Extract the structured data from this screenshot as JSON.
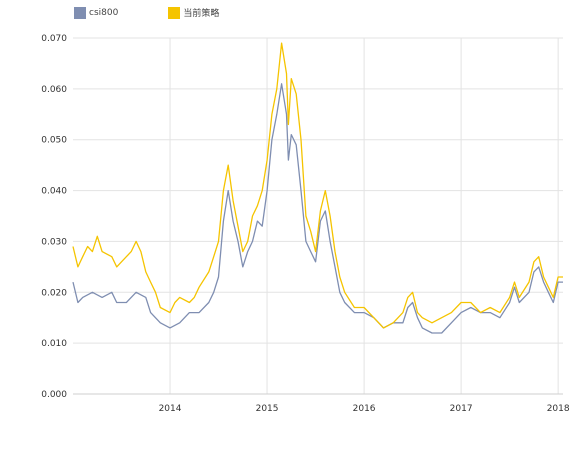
{
  "chart_data": {
    "type": "line",
    "title": "",
    "xlabel": "",
    "ylabel": "",
    "ylim": [
      0,
      0.07
    ],
    "y_ticks": [
      "0.000",
      "0.010",
      "0.020",
      "0.030",
      "0.040",
      "0.050",
      "0.060",
      "0.070"
    ],
    "x_ticks": [
      "2014",
      "2015",
      "2016",
      "2017",
      "2018"
    ],
    "x_range": [
      2013.0,
      2018.05
    ],
    "grid": true,
    "legend_position": "top-left",
    "series": [
      {
        "name": "csi800",
        "color": "#7f8eb1",
        "points": [
          [
            2013.0,
            0.022
          ],
          [
            2013.05,
            0.018
          ],
          [
            2013.1,
            0.019
          ],
          [
            2013.2,
            0.02
          ],
          [
            2013.3,
            0.019
          ],
          [
            2013.4,
            0.02
          ],
          [
            2013.45,
            0.018
          ],
          [
            2013.55,
            0.018
          ],
          [
            2013.65,
            0.02
          ],
          [
            2013.75,
            0.019
          ],
          [
            2013.8,
            0.016
          ],
          [
            2013.9,
            0.014
          ],
          [
            2014.0,
            0.013
          ],
          [
            2014.1,
            0.014
          ],
          [
            2014.2,
            0.016
          ],
          [
            2014.25,
            0.016
          ],
          [
            2014.3,
            0.016
          ],
          [
            2014.4,
            0.018
          ],
          [
            2014.45,
            0.02
          ],
          [
            2014.5,
            0.023
          ],
          [
            2014.55,
            0.034
          ],
          [
            2014.6,
            0.04
          ],
          [
            2014.65,
            0.034
          ],
          [
            2014.7,
            0.03
          ],
          [
            2014.75,
            0.025
          ],
          [
            2014.8,
            0.028
          ],
          [
            2014.85,
            0.03
          ],
          [
            2014.9,
            0.034
          ],
          [
            2014.95,
            0.033
          ],
          [
            2015.0,
            0.04
          ],
          [
            2015.05,
            0.05
          ],
          [
            2015.1,
            0.055
          ],
          [
            2015.15,
            0.061
          ],
          [
            2015.2,
            0.055
          ],
          [
            2015.22,
            0.046
          ],
          [
            2015.25,
            0.051
          ],
          [
            2015.3,
            0.049
          ],
          [
            2015.35,
            0.04
          ],
          [
            2015.4,
            0.03
          ],
          [
            2015.45,
            0.028
          ],
          [
            2015.5,
            0.026
          ],
          [
            2015.55,
            0.034
          ],
          [
            2015.6,
            0.036
          ],
          [
            2015.65,
            0.03
          ],
          [
            2015.7,
            0.025
          ],
          [
            2015.75,
            0.02
          ],
          [
            2015.8,
            0.018
          ],
          [
            2015.9,
            0.016
          ],
          [
            2016.0,
            0.016
          ],
          [
            2016.1,
            0.015
          ],
          [
            2016.2,
            0.013
          ],
          [
            2016.3,
            0.014
          ],
          [
            2016.4,
            0.014
          ],
          [
            2016.45,
            0.017
          ],
          [
            2016.5,
            0.018
          ],
          [
            2016.55,
            0.015
          ],
          [
            2016.6,
            0.013
          ],
          [
            2016.7,
            0.012
          ],
          [
            2016.8,
            0.012
          ],
          [
            2016.9,
            0.014
          ],
          [
            2017.0,
            0.016
          ],
          [
            2017.1,
            0.017
          ],
          [
            2017.2,
            0.016
          ],
          [
            2017.3,
            0.016
          ],
          [
            2017.4,
            0.015
          ],
          [
            2017.5,
            0.018
          ],
          [
            2017.55,
            0.021
          ],
          [
            2017.6,
            0.018
          ],
          [
            2017.7,
            0.02
          ],
          [
            2017.75,
            0.024
          ],
          [
            2017.8,
            0.025
          ],
          [
            2017.85,
            0.022
          ],
          [
            2017.9,
            0.02
          ],
          [
            2017.95,
            0.018
          ],
          [
            2018.0,
            0.022
          ],
          [
            2018.05,
            0.022
          ]
        ]
      },
      {
        "name": "当前策略",
        "color": "#f5c400",
        "points": [
          [
            2013.0,
            0.029
          ],
          [
            2013.05,
            0.025
          ],
          [
            2013.1,
            0.027
          ],
          [
            2013.15,
            0.029
          ],
          [
            2013.2,
            0.028
          ],
          [
            2013.25,
            0.031
          ],
          [
            2013.3,
            0.028
          ],
          [
            2013.4,
            0.027
          ],
          [
            2013.45,
            0.025
          ],
          [
            2013.5,
            0.026
          ],
          [
            2013.6,
            0.028
          ],
          [
            2013.65,
            0.03
          ],
          [
            2013.7,
            0.028
          ],
          [
            2013.75,
            0.024
          ],
          [
            2013.8,
            0.022
          ],
          [
            2013.85,
            0.02
          ],
          [
            2013.9,
            0.017
          ],
          [
            2014.0,
            0.016
          ],
          [
            2014.05,
            0.018
          ],
          [
            2014.1,
            0.019
          ],
          [
            2014.2,
            0.018
          ],
          [
            2014.25,
            0.019
          ],
          [
            2014.3,
            0.021
          ],
          [
            2014.4,
            0.024
          ],
          [
            2014.45,
            0.027
          ],
          [
            2014.5,
            0.03
          ],
          [
            2014.55,
            0.04
          ],
          [
            2014.6,
            0.045
          ],
          [
            2014.65,
            0.038
          ],
          [
            2014.7,
            0.033
          ],
          [
            2014.75,
            0.028
          ],
          [
            2014.8,
            0.03
          ],
          [
            2014.85,
            0.035
          ],
          [
            2014.9,
            0.037
          ],
          [
            2014.95,
            0.04
          ],
          [
            2015.0,
            0.046
          ],
          [
            2015.05,
            0.055
          ],
          [
            2015.1,
            0.06
          ],
          [
            2015.15,
            0.069
          ],
          [
            2015.2,
            0.063
          ],
          [
            2015.22,
            0.053
          ],
          [
            2015.25,
            0.062
          ],
          [
            2015.3,
            0.059
          ],
          [
            2015.35,
            0.05
          ],
          [
            2015.4,
            0.035
          ],
          [
            2015.45,
            0.032
          ],
          [
            2015.5,
            0.028
          ],
          [
            2015.55,
            0.036
          ],
          [
            2015.6,
            0.04
          ],
          [
            2015.65,
            0.035
          ],
          [
            2015.7,
            0.028
          ],
          [
            2015.75,
            0.023
          ],
          [
            2015.8,
            0.02
          ],
          [
            2015.9,
            0.017
          ],
          [
            2016.0,
            0.017
          ],
          [
            2016.1,
            0.015
          ],
          [
            2016.2,
            0.013
          ],
          [
            2016.3,
            0.014
          ],
          [
            2016.4,
            0.016
          ],
          [
            2016.45,
            0.019
          ],
          [
            2016.5,
            0.02
          ],
          [
            2016.55,
            0.016
          ],
          [
            2016.6,
            0.015
          ],
          [
            2016.7,
            0.014
          ],
          [
            2016.8,
            0.015
          ],
          [
            2016.9,
            0.016
          ],
          [
            2017.0,
            0.018
          ],
          [
            2017.1,
            0.018
          ],
          [
            2017.2,
            0.016
          ],
          [
            2017.3,
            0.017
          ],
          [
            2017.4,
            0.016
          ],
          [
            2017.5,
            0.019
          ],
          [
            2017.55,
            0.022
          ],
          [
            2017.6,
            0.019
          ],
          [
            2017.7,
            0.022
          ],
          [
            2017.75,
            0.026
          ],
          [
            2017.8,
            0.027
          ],
          [
            2017.85,
            0.023
          ],
          [
            2017.9,
            0.021
          ],
          [
            2017.95,
            0.019
          ],
          [
            2018.0,
            0.023
          ],
          [
            2018.05,
            0.023
          ]
        ]
      }
    ]
  }
}
